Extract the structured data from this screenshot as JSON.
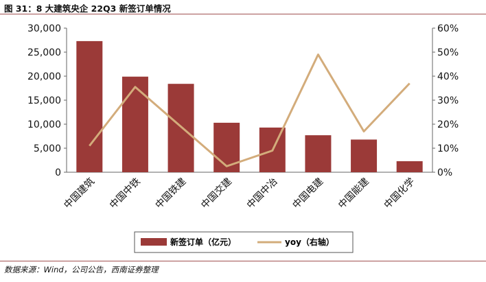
{
  "figure": {
    "title": "图 31：8 大建筑央企 22Q3 新签订单情况",
    "source": "数据来源：Wind，公司公告，西南证券整理"
  },
  "colors": {
    "bar": "#9b3a38",
    "line": "#d3ac7b",
    "rule": "#a05050"
  },
  "chart_data": {
    "type": "bar",
    "categories": [
      "中国建筑",
      "中国中铁",
      "中国铁建",
      "中国交建",
      "中国中冶",
      "中国电建",
      "中国能建",
      "中国化学"
    ],
    "series": [
      {
        "name": "新签订单（亿元）",
        "type": "bar",
        "axis": "left",
        "values": [
          27300,
          19900,
          18400,
          10300,
          9300,
          7700,
          6800,
          2300
        ]
      },
      {
        "name": "yoy（右轴）",
        "type": "line",
        "axis": "right",
        "values": [
          0.11,
          0.355,
          0.19,
          0.025,
          0.09,
          0.49,
          0.17,
          0.37
        ]
      }
    ],
    "y_left": {
      "min": 0,
      "max": 30000,
      "ticks": [
        "0",
        "5,000",
        "10,000",
        "15,000",
        "20,000",
        "25,000",
        "30,000"
      ]
    },
    "y_right": {
      "min": 0,
      "max": 0.6,
      "ticks": [
        "0%",
        "10%",
        "20%",
        "30%",
        "40%",
        "50%",
        "60%"
      ]
    },
    "legend_position": "bottom"
  }
}
